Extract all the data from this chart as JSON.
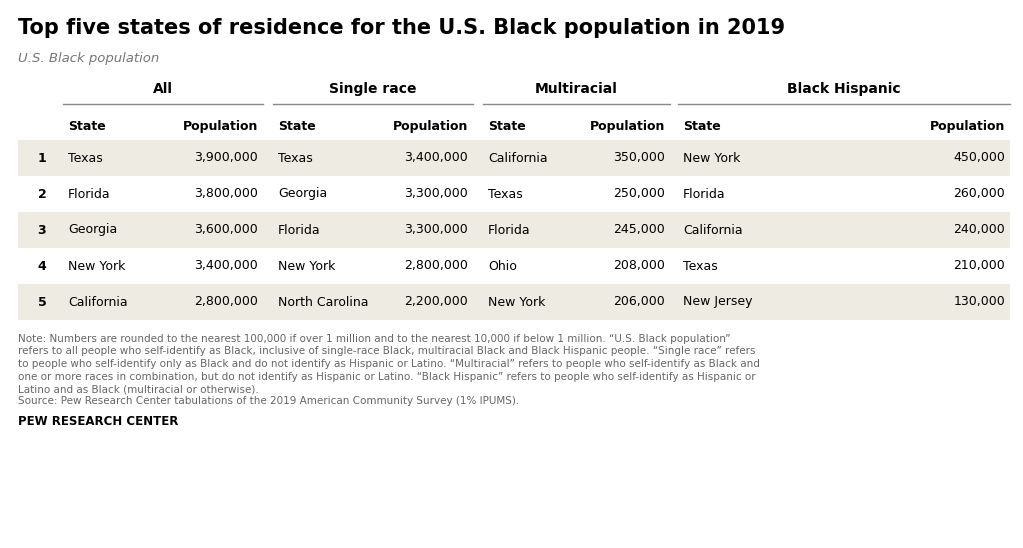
{
  "title": "Top five states of residence for the U.S. Black population in 2019",
  "subtitle": "U.S. Black population",
  "group_headers": [
    "All",
    "Single race",
    "Multiracial",
    "Black Hispanic"
  ],
  "rows": [
    {
      "rank": "1",
      "all_state": "Texas",
      "all_pop": "3,900,000",
      "single_state": "Texas",
      "single_pop": "3,400,000",
      "multi_state": "California",
      "multi_pop": "350,000",
      "hisp_state": "New York",
      "hisp_pop": "450,000"
    },
    {
      "rank": "2",
      "all_state": "Florida",
      "all_pop": "3,800,000",
      "single_state": "Georgia",
      "single_pop": "3,300,000",
      "multi_state": "Texas",
      "multi_pop": "250,000",
      "hisp_state": "Florida",
      "hisp_pop": "260,000"
    },
    {
      "rank": "3",
      "all_state": "Georgia",
      "all_pop": "3,600,000",
      "single_state": "Florida",
      "single_pop": "3,300,000",
      "multi_state": "Florida",
      "multi_pop": "245,000",
      "hisp_state": "California",
      "hisp_pop": "240,000"
    },
    {
      "rank": "4",
      "all_state": "New York",
      "all_pop": "3,400,000",
      "single_state": "New York",
      "single_pop": "2,800,000",
      "multi_state": "Ohio",
      "multi_pop": "208,000",
      "hisp_state": "Texas",
      "hisp_pop": "210,000"
    },
    {
      "rank": "5",
      "all_state": "California",
      "all_pop": "2,800,000",
      "single_state": "North Carolina",
      "single_pop": "2,200,000",
      "multi_state": "New York",
      "multi_pop": "206,000",
      "hisp_state": "New Jersey",
      "hisp_pop": "130,000"
    }
  ],
  "note_line1": "Note: Numbers are rounded to the nearest 100,000 if over 1 million and to the nearest 10,000 if below 1 million. “U.S. Black population”",
  "note_line2": "refers to all people who self-identify as Black, inclusive of single-race Black, multiracial Black and Black Hispanic people. “Single race” refers",
  "note_line3": "to people who self-identify only as Black and do not identify as Hispanic or Latino. “Multiracial” refers to people who self-identify as Black and",
  "note_line4": "one or more races in combination, but do not identify as Hispanic or Latino. “Black Hispanic” refers to people who self-identify as Hispanic or",
  "note_line5": "Latino and as Black (multiracial or otherwise).",
  "note_line6": "Source: Pew Research Center tabulations of the 2019 American Community Survey (1% IPUMS).",
  "source_label": "PEW RESEARCH CENTER",
  "bg_color": "#ffffff",
  "row_alt_color": "#eeebe2",
  "row_white_color": "#ffffff",
  "header_line_color": "#888888",
  "title_fontsize": 15,
  "subtitle_fontsize": 9.5,
  "table_fontsize": 9,
  "note_fontsize": 7.5,
  "source_fontsize": 8.5
}
